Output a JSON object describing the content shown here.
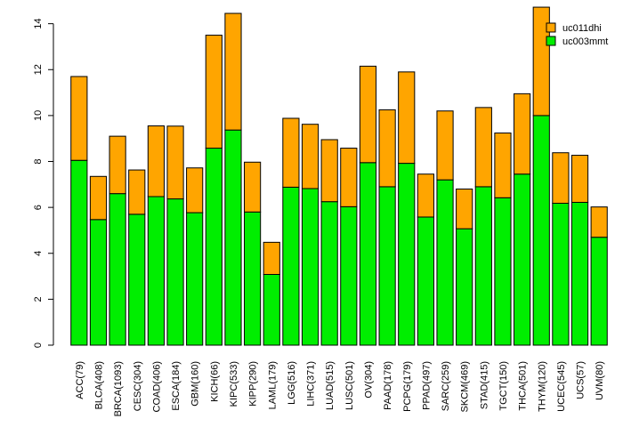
{
  "chart_data": {
    "type": "bar",
    "stacked": true,
    "title": "",
    "xlabel": "",
    "ylabel": "",
    "ylim": [
      0,
      14.8
    ],
    "yticks": [
      0,
      2,
      4,
      6,
      8,
      10,
      12,
      14
    ],
    "grid": false,
    "legend_position": "top-right",
    "categories": [
      "ACC(79)",
      "BLCA(408)",
      "BRCA(1093)",
      "CESC(304)",
      "COAD(406)",
      "ESCA(184)",
      "GBM(160)",
      "KICH(66)",
      "KIPC(533)",
      "KIPP(290)",
      "LAML(179)",
      "LGG(516)",
      "LIHC(371)",
      "LUAD(515)",
      "LUSC(501)",
      "OV(304)",
      "PAAD(178)",
      "PCPG(179)",
      "PPAD(497)",
      "SARC(259)",
      "SKCM(469)",
      "STAD(415)",
      "TGCT(150)",
      "THCA(501)",
      "THYM(120)",
      "UCEC(545)",
      "UCS(57)",
      "UVM(80)"
    ],
    "series": [
      {
        "name": "uc003mmt",
        "color": "#00ee00",
        "values": [
          8.05,
          5.47,
          6.6,
          5.7,
          6.47,
          6.37,
          5.77,
          8.58,
          9.37,
          5.8,
          3.08,
          6.88,
          6.82,
          6.25,
          6.03,
          7.95,
          6.9,
          7.92,
          5.58,
          7.2,
          5.07,
          6.9,
          6.42,
          7.45,
          10.0,
          6.18,
          6.22,
          4.7
        ]
      },
      {
        "name": "uc011dhi",
        "color": "#ffa500",
        "values": [
          3.65,
          1.88,
          2.5,
          1.93,
          3.08,
          3.17,
          1.95,
          4.92,
          5.08,
          2.17,
          1.4,
          3.0,
          2.8,
          2.7,
          2.55,
          4.2,
          3.35,
          3.98,
          1.87,
          3.0,
          1.73,
          3.45,
          2.82,
          3.5,
          4.72,
          2.2,
          2.05,
          1.32
        ]
      }
    ],
    "legend": [
      "uc011dhi",
      "uc003mmt"
    ]
  }
}
